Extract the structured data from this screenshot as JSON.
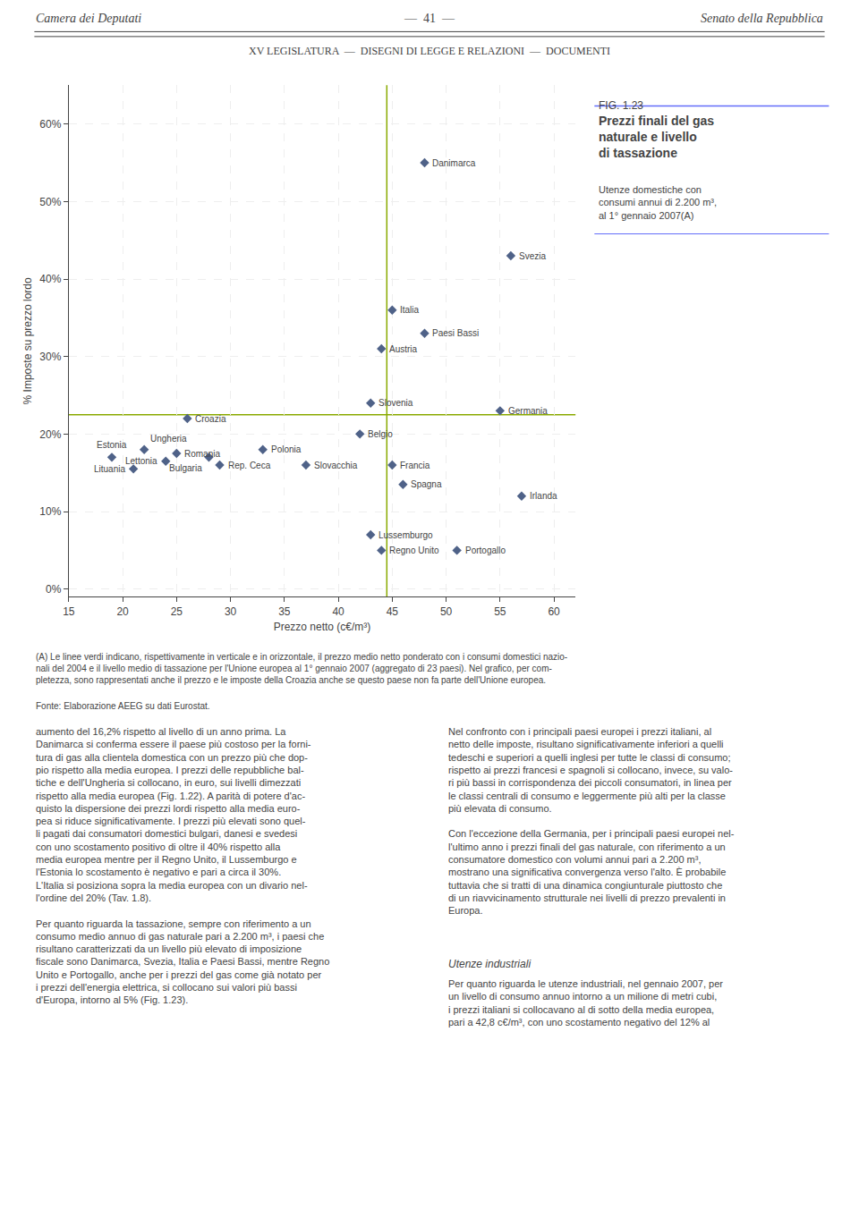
{
  "chart_data": {
    "type": "scatter",
    "fig_label": "FIG. 1.23",
    "title": "Prezzi finali del gas\nnaturale e livello\ndi tassazione",
    "subtitle": "Utenze domestiche con\nconsumi annui di 2.200 m³,\nal 1° gennaio 2007(A)",
    "labels": [
      "Danimarca",
      "Svezia",
      "Italia",
      "Paesi Bassi",
      "Austria",
      "Slovenia",
      "Germania",
      "Croazia",
      "Belgio",
      "Estonia",
      "Ungheria",
      "Romania",
      "Bulgaria",
      "Polonia",
      "Lituania",
      "Lettonia",
      "Rep. Ceca",
      "Slovacchia",
      "Francia",
      "Spagna",
      "Irlanda",
      "Lussemburgo",
      "Regno Unito",
      "Portogallo"
    ],
    "x": [
      48,
      56,
      45,
      48,
      44,
      43,
      55,
      26,
      42,
      19,
      22,
      25,
      28,
      33,
      21,
      24,
      29,
      37,
      45,
      46,
      57,
      43,
      44,
      51
    ],
    "values": [
      55,
      43,
      36,
      33,
      31,
      24,
      23,
      22,
      20,
      17,
      18,
      17.5,
      17,
      18,
      15.5,
      16.5,
      16,
      16,
      16,
      13.5,
      12,
      7,
      5,
      5
    ],
    "color": "#4f6288",
    "marker": "diamond",
    "xlabel": "Prezzo netto (c€/m³)",
    "ylabel": "% Imposte su prezzo lordo",
    "xlim": [
      15,
      62
    ],
    "ylim": [
      -1,
      65
    ],
    "xticks": [
      15,
      20,
      25,
      30,
      35,
      40,
      45,
      50,
      55,
      60
    ],
    "yticks": [
      {
        "value": 0,
        "label": "0%"
      },
      {
        "value": 10,
        "label": "10%"
      },
      {
        "value": 20,
        "label": "20%"
      },
      {
        "value": 30,
        "label": "30%"
      },
      {
        "value": 40,
        "label": "40%"
      },
      {
        "value": 50,
        "label": "50%"
      },
      {
        "value": 60,
        "label": "60%"
      }
    ],
    "grid": true,
    "reference_lines": {
      "x": 44.5,
      "y": 22.5,
      "color": "#8aaa00"
    },
    "header": {
      "left": "Camera dei Deputati",
      "center": "—  41  —",
      "right": "Senato della Repubblica",
      "subheader": "XV LEGISLATURA  —  DISEGNI DI LEGGE E RELAZIONI  —  DOCUMENTI"
    },
    "footnote": "(A) Le linee verdi indicano, rispettivamente in verticale e in orizzontale, il prezzo medio netto ponderato con i consumi domestici nazio-\nnali del 2004 e il livello medio di tassazione per l'Unione europea al 1° gennaio 2007 (aggregato di 23 paesi). Nel grafico, per com-\npletezza, sono rappresentati anche il prezzo e le imposte della Croazia anche se questo paese non fa parte dell'Unione europea.",
    "source": "Fonte: Elaborazione AEEG su dati Eurostat.",
    "body": {
      "left": "aumento del 16,2% rispetto al livello di un anno prima. La\nDanimarca si conferma essere il paese più costoso per la forni-\ntura di gas alla clientela domestica con un prezzo più che dop-\npio rispetto alla media europea. I prezzi delle repubbliche bal-\ntiche e dell'Ungheria si collocano, in euro, sui livelli dimezzati\nrispetto alla media europea (Fig. 1.22). A parità di potere d'ac-\nquisto la dispersione dei prezzi lordi rispetto alla media euro-\npea si riduce significativamente. I prezzi più elevati sono quel-\nli pagati dai consumatori domestici bulgari, danesi e svedesi\ncon uno scostamento positivo di oltre il 40% rispetto alla\nmedia europea mentre per il Regno Unito, il Lussemburgo e\nl'Estonia lo scostamento è negativo e pari a circa il 30%.\nL'Italia si posiziona sopra la media europea con un divario nel-\nl'ordine del 20% (Tav. 1.8).\n\nPer quanto riguarda la tassazione, sempre con riferimento a un\nconsumo medio annuo di gas naturale pari a 2.200 m³, i paesi che\nrisultano caratterizzati da un livello più elevato di imposizione\nfiscale sono Danimarca, Svezia, Italia e Paesi Bassi, mentre Regno\nUnito e Portogallo, anche per i prezzi del gas come già notato per\ni prezzi dell'energia elettrica, si collocano sui valori più bassi\nd'Europa, intorno al 5% (Fig. 1.23).",
      "right": "Nel confronto con i principali paesi europei i prezzi italiani, al\nnetto delle imposte, risultano significativamente inferiori a quelli\ntedeschi e superiori a quelli inglesi per tutte le classi di consumo;\nrispetto ai prezzi francesi e spagnoli si collocano, invece, su valo-\nri più bassi in corrispondenza dei piccoli consumatori, in linea per\nle classi centrali di consumo e leggermente più alti per la classe\npiù elevata di consumo.\n\nCon l'eccezione della Germania, per i principali paesi europei nel-\nl'ultimo anno i prezzi finali del gas naturale, con riferimento a un\nconsumatore domestico con volumi annui pari a 2.200 m³,\nmostrano una significativa convergenza verso l'alto. È probabile\ntuttavia che si tratti di una dinamica congiunturale piuttosto che\ndi un riavvicinamento strutturale nei livelli di prezzo prevalenti in\nEuropa.",
      "section_heading": "Utenze industriali",
      "right_continued": "Per quanto riguarda le utenze industriali, nel gennaio 2007, per\nun livello di consumo annuo intorno a un milione di metri cubi,\ni prezzi italiani si collocavano al di sotto della media europea,\npari a 42,8 c€/m³, con uno scostamento negativo del 12% al"
    }
  }
}
